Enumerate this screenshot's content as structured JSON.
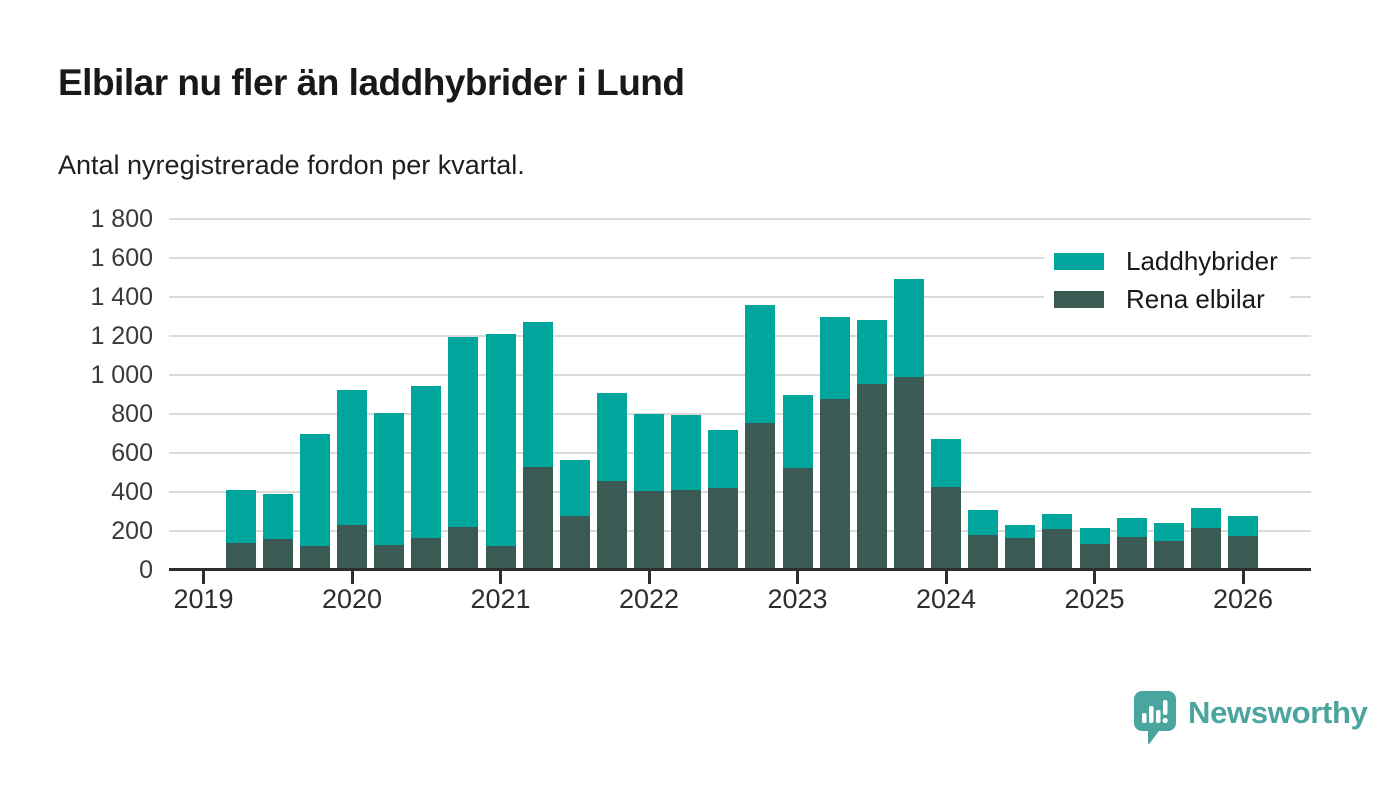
{
  "title": "Elbilar nu fler än laddhybrider i Lund",
  "subtitle": "Antal nyregistrerade fordon per kvartal.",
  "legend": {
    "items": [
      {
        "label": "Laddhybrider",
        "color": "#00a69c"
      },
      {
        "label": "Rena elbilar",
        "color": "#3a5a53"
      }
    ]
  },
  "brand": {
    "name": "Newsworthy",
    "color": "#4ba59f",
    "logo_icon": "speech-bubble-bar-chart-icon"
  },
  "colors": {
    "laddhybrider": "#00a69c",
    "rena_elbilar": "#3a5a53",
    "gridline": "#dadada",
    "axis": "#2d2d2d",
    "title_text": "#191919"
  },
  "chart_data": {
    "type": "bar",
    "stacked": true,
    "title": "Elbilar nu fler än laddhybrider i Lund",
    "subtitle": "Antal nyregistrerade fordon per kvartal.",
    "xlabel": "",
    "ylabel": "",
    "ylim": [
      0,
      1800
    ],
    "grid": true,
    "legend_position": "top-right",
    "y_ticks": [
      {
        "value": 0,
        "label": "0"
      },
      {
        "value": 200,
        "label": "200"
      },
      {
        "value": 400,
        "label": "400"
      },
      {
        "value": 600,
        "label": "600"
      },
      {
        "value": 800,
        "label": "800"
      },
      {
        "value": 1000,
        "label": "1 000"
      },
      {
        "value": 1200,
        "label": "1 200"
      },
      {
        "value": 1400,
        "label": "1 400"
      },
      {
        "value": 1600,
        "label": "1 600"
      },
      {
        "value": 1800,
        "label": "1 800"
      }
    ],
    "x_year_ticks": [
      "2019",
      "2020",
      "2021",
      "2022",
      "2023",
      "2024",
      "2025",
      "2026"
    ],
    "quarters": [
      "2019 Q2",
      "2019 Q3",
      "2019 Q4",
      "2020 Q1",
      "2020 Q2",
      "2020 Q3",
      "2020 Q4",
      "2021 Q1",
      "2021 Q2",
      "2021 Q3",
      "2021 Q4",
      "2022 Q1",
      "2022 Q2",
      "2022 Q3",
      "2022 Q4",
      "2023 Q1",
      "2023 Q2",
      "2023 Q3",
      "2023 Q4",
      "2024 Q1",
      "2024 Q2",
      "2024 Q3",
      "2024 Q4",
      "2025 Q1",
      "2025 Q2",
      "2025 Q3",
      "2025 Q4",
      "2026 Q1"
    ],
    "series": [
      {
        "name": "Rena elbilar",
        "color": "#3a5a53",
        "values": [
          140,
          160,
          125,
          230,
          130,
          165,
          220,
          125,
          530,
          275,
          455,
          405,
          410,
          420,
          755,
          525,
          875,
          955,
          990,
          425,
          180,
          165,
          210,
          135,
          170,
          150,
          215,
          175
        ]
      },
      {
        "name": "Laddhybrider",
        "color": "#00a69c",
        "values": [
          270,
          230,
          575,
          695,
          675,
          780,
          975,
          1085,
          740,
          290,
          455,
          395,
          385,
          300,
          605,
          375,
          420,
          325,
          500,
          245,
          130,
          65,
          75,
          80,
          95,
          90,
          105,
          100
        ]
      }
    ]
  }
}
